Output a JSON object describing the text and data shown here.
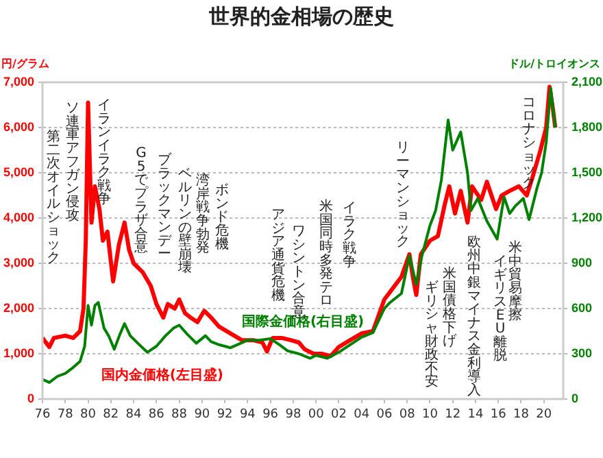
{
  "chart_data": {
    "type": "line",
    "title": "世界的金相場の歴史",
    "ylabel": "円/グラム",
    "y2label": "ドル/トロイオンス",
    "xlim": [
      1976,
      2021.7
    ],
    "xticks": [
      {
        "value": 1976,
        "label": "76"
      },
      {
        "value": 1978,
        "label": "78"
      },
      {
        "value": 1980,
        "label": "80"
      },
      {
        "value": 1982,
        "label": "82"
      },
      {
        "value": 1984,
        "label": "84"
      },
      {
        "value": 1986,
        "label": "86"
      },
      {
        "value": 1988,
        "label": "88"
      },
      {
        "value": 1990,
        "label": "90"
      },
      {
        "value": 1992,
        "label": "92"
      },
      {
        "value": 1994,
        "label": "94"
      },
      {
        "value": 1996,
        "label": "96"
      },
      {
        "value": 1998,
        "label": "98"
      },
      {
        "value": 2000,
        "label": "00"
      },
      {
        "value": 2002,
        "label": "02"
      },
      {
        "value": 2004,
        "label": "04"
      },
      {
        "value": 2006,
        "label": "06"
      },
      {
        "value": 2008,
        "label": "08"
      },
      {
        "value": 2010,
        "label": "10"
      },
      {
        "value": 2012,
        "label": "12"
      },
      {
        "value": 2014,
        "label": "14"
      },
      {
        "value": 2016,
        "label": "16"
      },
      {
        "value": 2018,
        "label": "18"
      },
      {
        "value": 2020,
        "label": "20"
      }
    ],
    "ylim": [
      0,
      7000
    ],
    "yticks": [
      {
        "value": 0,
        "label": "0"
      },
      {
        "value": 1000,
        "label": "1,000"
      },
      {
        "value": 2000,
        "label": "2,000"
      },
      {
        "value": 3000,
        "label": "3,000"
      },
      {
        "value": 4000,
        "label": "4,000"
      },
      {
        "value": 5000,
        "label": "5,000"
      },
      {
        "value": 6000,
        "label": "6,000"
      },
      {
        "value": 7000,
        "label": "7,000"
      }
    ],
    "y2lim": [
      0,
      2100
    ],
    "y2ticks": [
      {
        "value": 0,
        "label": "0"
      },
      {
        "value": 300,
        "label": "300"
      },
      {
        "value": 600,
        "label": "600"
      },
      {
        "value": 900,
        "label": "900"
      },
      {
        "value": 1200,
        "label": "1,200"
      },
      {
        "value": 1500,
        "label": "1,500"
      },
      {
        "value": 1800,
        "label": "1,800"
      },
      {
        "value": 2100,
        "label": "2,100"
      }
    ],
    "grid": "y",
    "marker": "none",
    "line_style": "solid",
    "series": [
      {
        "name": "国際金価格(右目盛)",
        "color": "#008000",
        "axis": "y2",
        "x": [
          1976,
          1976.6,
          1977.3,
          1978,
          1978.7,
          1979.3,
          1979.7,
          1980,
          1980.3,
          1980.6,
          1980.9,
          1981.4,
          1981.8,
          1982.3,
          1982.8,
          1983.2,
          1983.7,
          1984.5,
          1985.2,
          1986,
          1986.8,
          1987.5,
          1988,
          1988.7,
          1989.5,
          1990.3,
          1990.8,
          1991.5,
          1992.5,
          1993.4,
          1994,
          1995,
          1996,
          1996.8,
          1997.5,
          1998.5,
          1999.5,
          2000,
          2001,
          2002,
          2003,
          2004,
          2005,
          2006,
          2006.5,
          2007.5,
          2008.2,
          2008.8,
          2009.3,
          2010,
          2010.5,
          2011,
          2011.6,
          2012,
          2012.7,
          2013.3,
          2013.6,
          2014.2,
          2015,
          2015.9,
          2016.5,
          2017,
          2017.5,
          2018.2,
          2018.7,
          2019.4,
          2019.8,
          2020.2,
          2020.6,
          2021
        ],
        "values": [
          130,
          110,
          150,
          170,
          210,
          250,
          350,
          620,
          490,
          620,
          640,
          470,
          420,
          330,
          430,
          500,
          420,
          360,
          310,
          350,
          420,
          470,
          490,
          430,
          370,
          420,
          380,
          360,
          340,
          370,
          390,
          390,
          400,
          360,
          320,
          300,
          270,
          290,
          270,
          310,
          360,
          410,
          440,
          600,
          640,
          700,
          950,
          760,
          950,
          1150,
          1250,
          1450,
          1850,
          1650,
          1770,
          1500,
          1250,
          1330,
          1180,
          1060,
          1340,
          1230,
          1280,
          1330,
          1190,
          1400,
          1500,
          1700,
          2060,
          1800
        ]
      },
      {
        "name": "国内金価格(左目盛)",
        "color": "#ff0000",
        "x": [
          1976,
          1976.6,
          1977,
          1978,
          1978.7,
          1979.3,
          1979.6,
          1979.8,
          1980,
          1980.3,
          1980.6,
          1981,
          1981.3,
          1981.7,
          1982.2,
          1982.7,
          1983.2,
          1983.6,
          1984,
          1984.8,
          1985.5,
          1986,
          1986.6,
          1987,
          1987.6,
          1988,
          1988.5,
          1989,
          1989.6,
          1990.2,
          1990.8,
          1991.5,
          1992.5,
          1993.5,
          1994.5,
          1995.3,
          1995.7,
          1996.2,
          1997,
          1997.8,
          1998.5,
          1999,
          1999.8,
          2000.5,
          2001.3,
          2002,
          2003,
          2004,
          2005,
          2006,
          2006.6,
          2007.5,
          2008.2,
          2008.5,
          2008.8,
          2009.2,
          2010,
          2010.7,
          2011.3,
          2011.7,
          2012.2,
          2012.7,
          2013.3,
          2013.7,
          2014.5,
          2015,
          2015.8,
          2016.3,
          2017,
          2017.8,
          2018.5,
          2019,
          2019.7,
          2020.2,
          2020.5,
          2020.8,
          2021
        ],
        "values": [
          1350,
          1150,
          1350,
          1400,
          1350,
          1500,
          2000,
          3500,
          6550,
          3900,
          4700,
          4200,
          3500,
          3700,
          2600,
          3400,
          3900,
          3300,
          3000,
          2800,
          2500,
          2100,
          1800,
          2100,
          2000,
          2200,
          1900,
          1800,
          1700,
          1950,
          1800,
          1600,
          1450,
          1300,
          1300,
          1250,
          1050,
          1350,
          1350,
          1300,
          1250,
          1100,
          1000,
          1000,
          950,
          1150,
          1300,
          1450,
          1500,
          2200,
          2400,
          2700,
          3200,
          2700,
          2300,
          3200,
          3500,
          3600,
          4300,
          4700,
          4100,
          4600,
          3900,
          4700,
          4400,
          4800,
          4200,
          4500,
          4600,
          4700,
          4500,
          4900,
          5500,
          6000,
          6900,
          6400,
          6000
        ]
      }
    ],
    "annotations": [
      "第二次オイルショック",
      "ソ連軍アフガン侵攻",
      "イランイラク戦争",
      "G5でプラザ合意",
      "ブラックマンデー",
      "ベルリンの壁崩壊",
      "湾岸戦争勃発",
      "ボンド危機",
      "アジア通貨危機",
      "ワシントン合意",
      "米国同時多発テロ",
      "イラク戦争",
      "リーマンショック",
      "ギリシャ財政不安",
      "米国債格下げ",
      "欧州中銀マイナス金利導入",
      "イギリスEU離脱",
      "米中貿易摩擦",
      "コロナショック"
    ]
  }
}
